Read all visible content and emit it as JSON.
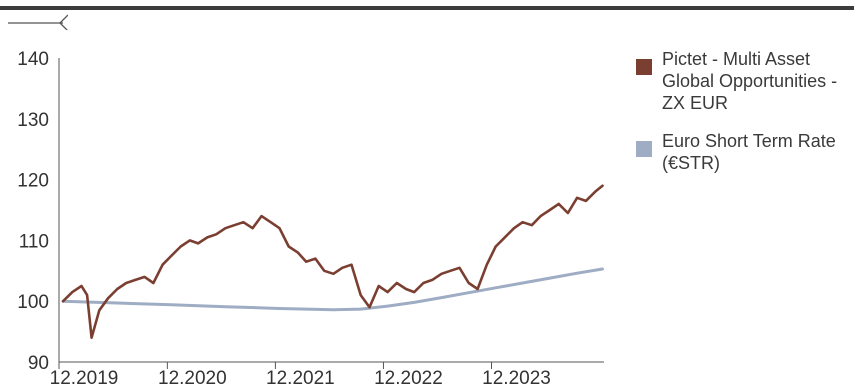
{
  "colors": {
    "fund": "#7b3f32",
    "benchmark": "#9eacc4",
    "axis": "#555555",
    "rule": "#3c3c3c"
  },
  "icons": {
    "back": "back-arrow-icon"
  },
  "chart_data": {
    "type": "line",
    "ylim": [
      90,
      140
    ],
    "yticks": [
      "140",
      "130",
      "120",
      "110",
      "100",
      "90"
    ],
    "xlim": [
      "2019-12-01",
      "2024-12-15"
    ],
    "xticks": [
      "12.2019",
      "12.2020",
      "12.2021",
      "12.2022",
      "12.2023"
    ],
    "legend": "right",
    "series": [
      {
        "name": "Pictet - Multi Asset Global Opportunities - ZX EUR",
        "color": "#7b3f32",
        "x": [
          "2019-12-15",
          "2020-01-15",
          "2020-02-15",
          "2020-03-05",
          "2020-03-20",
          "2020-04-15",
          "2020-05-15",
          "2020-06-15",
          "2020-07-15",
          "2020-08-15",
          "2020-09-15",
          "2020-10-15",
          "2020-11-15",
          "2020-12-15",
          "2021-01-15",
          "2021-02-15",
          "2021-03-15",
          "2021-04-15",
          "2021-05-15",
          "2021-06-15",
          "2021-07-15",
          "2021-08-15",
          "2021-09-15",
          "2021-10-15",
          "2021-11-15",
          "2021-12-15",
          "2022-01-15",
          "2022-02-15",
          "2022-03-15",
          "2022-04-15",
          "2022-05-15",
          "2022-06-15",
          "2022-07-15",
          "2022-08-15",
          "2022-09-15",
          "2022-10-15",
          "2022-11-15",
          "2022-12-15",
          "2023-01-15",
          "2023-02-15",
          "2023-03-15",
          "2023-04-15",
          "2023-05-15",
          "2023-06-15",
          "2023-07-15",
          "2023-08-15",
          "2023-09-15",
          "2023-10-15",
          "2023-11-15",
          "2023-12-15",
          "2024-01-15",
          "2024-02-15",
          "2024-03-15",
          "2024-04-15",
          "2024-05-15",
          "2024-06-15",
          "2024-07-15",
          "2024-08-15",
          "2024-09-15",
          "2024-10-15",
          "2024-11-15",
          "2024-12-10"
        ],
        "y": [
          100,
          101.5,
          102.5,
          101,
          94,
          98.5,
          100.5,
          102,
          103,
          103.5,
          104,
          103,
          106,
          107.5,
          109,
          110,
          109.5,
          110.5,
          111,
          112,
          112.5,
          113,
          112,
          114,
          113,
          112,
          109,
          108,
          106.5,
          107,
          105,
          104.5,
          105.5,
          106,
          101,
          99,
          102.5,
          101.5,
          103,
          102,
          101.5,
          103,
          103.5,
          104.5,
          105,
          105.5,
          103,
          102,
          106,
          109,
          110.5,
          112,
          113,
          112.5,
          114,
          115,
          116,
          114.5,
          117,
          116.5,
          118,
          119
        ]
      },
      {
        "name": "Euro Short Term Rate (€STR)",
        "color": "#9eacc4",
        "x": [
          "2019-12-15",
          "2020-06-15",
          "2020-12-15",
          "2021-06-15",
          "2021-12-15",
          "2022-06-15",
          "2022-09-15",
          "2022-12-15",
          "2023-03-15",
          "2023-06-15",
          "2023-09-15",
          "2023-12-15",
          "2024-03-15",
          "2024-06-15",
          "2024-09-15",
          "2024-12-10"
        ],
        "y": [
          100,
          99.7,
          99.4,
          99.1,
          98.8,
          98.6,
          98.7,
          99.2,
          99.8,
          100.6,
          101.4,
          102.2,
          103,
          103.8,
          104.6,
          105.3
        ]
      }
    ]
  }
}
